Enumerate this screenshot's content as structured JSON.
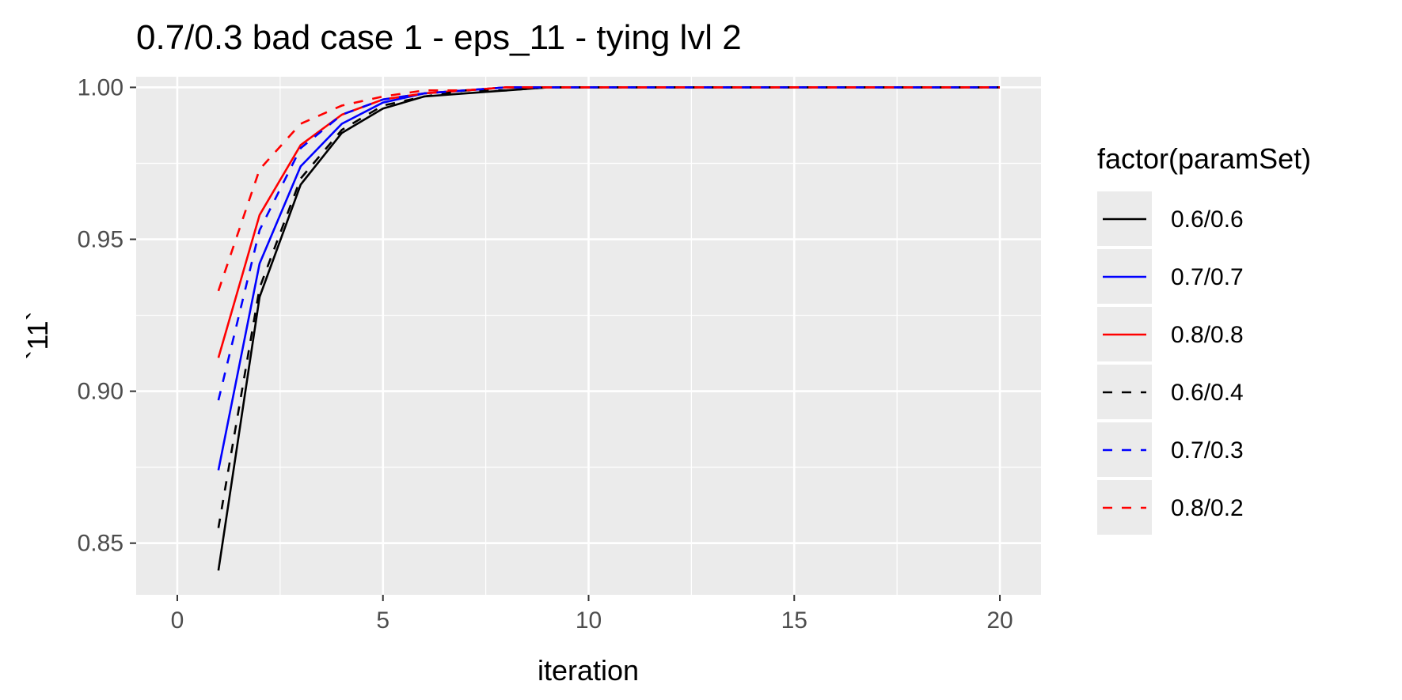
{
  "chart_data": {
    "type": "line",
    "title": "0.7/0.3 bad case 1 - eps_11 - tying lvl 2",
    "xlabel": "iteration",
    "ylabel": "`11`",
    "xlim": [
      -1,
      21
    ],
    "ylim": [
      0.833,
      1.0035
    ],
    "x_ticks": [
      0,
      5,
      10,
      15,
      20
    ],
    "x_tick_labels": [
      "0",
      "5",
      "10",
      "15",
      "20"
    ],
    "y_ticks": [
      0.85,
      0.9,
      0.95,
      1.0
    ],
    "y_tick_labels": [
      "0.85",
      "0.90",
      "0.95",
      "1.00"
    ],
    "grid": true,
    "legend_title": "factor(paramSet)",
    "legend_position": "right",
    "x": [
      1,
      2,
      3,
      4,
      5,
      6,
      7,
      8,
      9,
      10,
      11,
      12,
      13,
      14,
      15,
      16,
      17,
      18,
      19,
      20
    ],
    "series": [
      {
        "name": "0.6/0.6",
        "color": "#000000",
        "dash": "solid",
        "values": [
          0.841,
          0.931,
          0.968,
          0.985,
          0.993,
          0.997,
          0.998,
          0.999,
          1.0,
          1.0,
          1.0,
          1.0,
          1.0,
          1.0,
          1.0,
          1.0,
          1.0,
          1.0,
          1.0,
          1.0
        ]
      },
      {
        "name": "0.7/0.7",
        "color": "#0000FF",
        "dash": "solid",
        "values": [
          0.874,
          0.942,
          0.974,
          0.988,
          0.995,
          0.998,
          0.999,
          1.0,
          1.0,
          1.0,
          1.0,
          1.0,
          1.0,
          1.0,
          1.0,
          1.0,
          1.0,
          1.0,
          1.0,
          1.0
        ]
      },
      {
        "name": "0.8/0.8",
        "color": "#FF0000",
        "dash": "solid",
        "values": [
          0.911,
          0.958,
          0.981,
          0.991,
          0.996,
          0.998,
          0.999,
          1.0,
          1.0,
          1.0,
          1.0,
          1.0,
          1.0,
          1.0,
          1.0,
          1.0,
          1.0,
          1.0,
          1.0,
          1.0
        ]
      },
      {
        "name": "0.6/0.4",
        "color": "#000000",
        "dash": "dashed",
        "values": [
          0.855,
          0.934,
          0.97,
          0.986,
          0.994,
          0.997,
          0.999,
          0.999,
          1.0,
          1.0,
          1.0,
          1.0,
          1.0,
          1.0,
          1.0,
          1.0,
          1.0,
          1.0,
          1.0,
          1.0
        ]
      },
      {
        "name": "0.7/0.3",
        "color": "#0000FF",
        "dash": "dashed",
        "values": [
          0.897,
          0.953,
          0.98,
          0.991,
          0.996,
          0.998,
          0.999,
          1.0,
          1.0,
          1.0,
          1.0,
          1.0,
          1.0,
          1.0,
          1.0,
          1.0,
          1.0,
          1.0,
          1.0,
          1.0
        ]
      },
      {
        "name": "0.8/0.2",
        "color": "#FF0000",
        "dash": "dashed",
        "values": [
          0.933,
          0.973,
          0.988,
          0.994,
          0.997,
          0.999,
          0.999,
          1.0,
          1.0,
          1.0,
          1.0,
          1.0,
          1.0,
          1.0,
          1.0,
          1.0,
          1.0,
          1.0,
          1.0,
          1.0
        ]
      }
    ]
  }
}
